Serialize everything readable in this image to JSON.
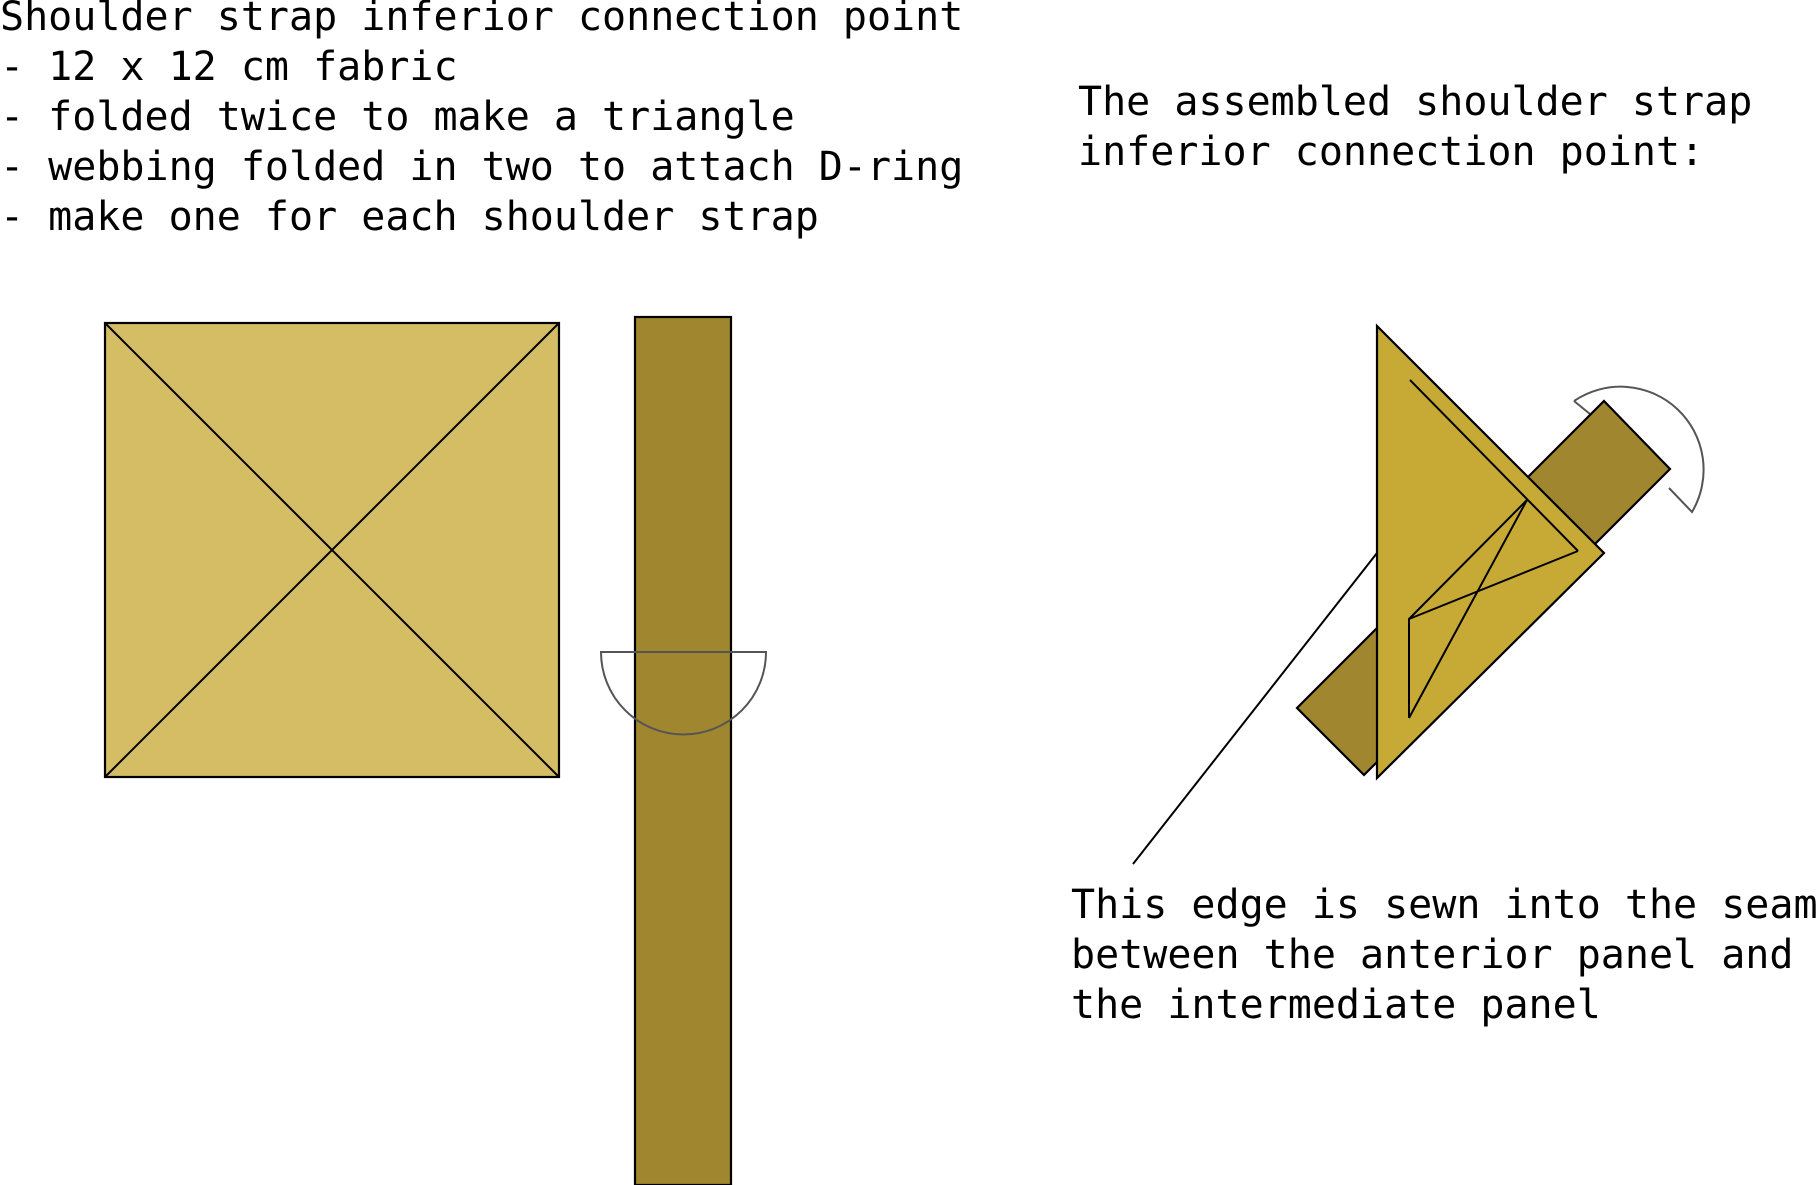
{
  "instructions": {
    "title": "Shoulder strap inferior connection point",
    "lines": [
      "- 12 x 12 cm fabric",
      "- folded twice to make a triangle",
      "- webbing folded in two to attach D-ring",
      "- make one for each shoulder strap"
    ]
  },
  "assembled_caption": {
    "lines": [
      "The assembled shoulder strap",
      "inferior connection point:"
    ]
  },
  "edge_note": {
    "lines": [
      "This edge is sewn into the seam",
      "between the anterior panel and",
      "the intermediate panel"
    ]
  },
  "colors": {
    "fabric_light": "#d4bd64",
    "fabric_folded": "#c7aa36",
    "webbing": "#a0862e",
    "outline": "#000000",
    "d_ring": "#555555",
    "background": "#ffffff"
  }
}
